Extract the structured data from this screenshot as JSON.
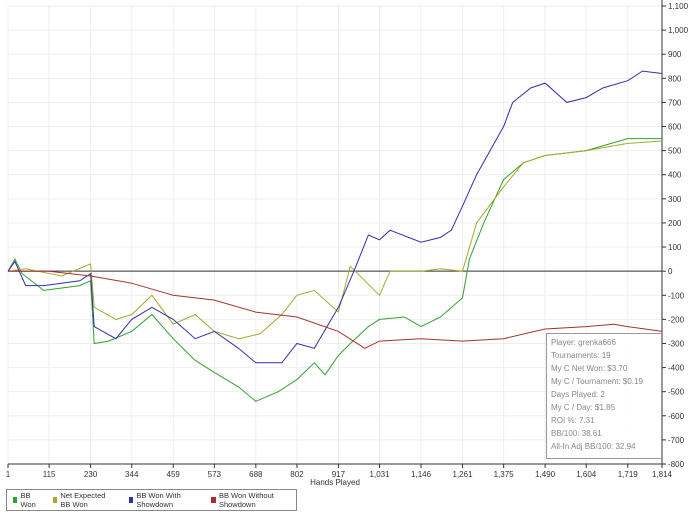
{
  "chart_data": {
    "type": "line",
    "xlabel": "Hands Played",
    "ylabel": "",
    "x_ticks": [
      "1",
      "115",
      "230",
      "344",
      "459",
      "573",
      "688",
      "802",
      "917",
      "1,031",
      "1,146",
      "1,261",
      "1,375",
      "1,490",
      "1,604",
      "1,719",
      "1,814"
    ],
    "x_tick_values": [
      1,
      115,
      230,
      344,
      459,
      573,
      688,
      802,
      917,
      1031,
      1146,
      1261,
      1375,
      1490,
      1604,
      1719,
      1814
    ],
    "y_ticks": [
      "1,100",
      "1,000",
      "900",
      "800",
      "700",
      "600",
      "500",
      "400",
      "300",
      "200",
      "100",
      "0",
      "-100",
      "-200",
      "-300",
      "-400",
      "-500",
      "-600",
      "-700",
      "-800"
    ],
    "xlim": [
      1,
      1814
    ],
    "ylim": [
      -800,
      1100
    ],
    "y_axis_side": "right",
    "grid": true,
    "legend_placement": "bottom-left",
    "series": [
      {
        "name": "BB Won",
        "color": "#33a033",
        "points": [
          [
            1,
            0
          ],
          [
            20,
            50
          ],
          [
            40,
            -10
          ],
          [
            100,
            -80
          ],
          [
            200,
            -60
          ],
          [
            230,
            -40
          ],
          [
            240,
            -300
          ],
          [
            280,
            -290
          ],
          [
            344,
            -250
          ],
          [
            400,
            -180
          ],
          [
            459,
            -280
          ],
          [
            520,
            -370
          ],
          [
            573,
            -420
          ],
          [
            640,
            -480
          ],
          [
            688,
            -540
          ],
          [
            750,
            -500
          ],
          [
            802,
            -450
          ],
          [
            850,
            -380
          ],
          [
            880,
            -430
          ],
          [
            917,
            -350
          ],
          [
            950,
            -300
          ],
          [
            1000,
            -230
          ],
          [
            1031,
            -200
          ],
          [
            1100,
            -190
          ],
          [
            1146,
            -230
          ],
          [
            1200,
            -190
          ],
          [
            1261,
            -110
          ],
          [
            1280,
            50
          ],
          [
            1320,
            200
          ],
          [
            1375,
            380
          ],
          [
            1430,
            450
          ],
          [
            1490,
            480
          ],
          [
            1550,
            490
          ],
          [
            1604,
            500
          ],
          [
            1719,
            550
          ],
          [
            1814,
            550
          ]
        ]
      },
      {
        "name": "Net Expected BB Won",
        "color": "#a8a830",
        "points": [
          [
            1,
            0
          ],
          [
            50,
            10
          ],
          [
            150,
            -20
          ],
          [
            230,
            30
          ],
          [
            240,
            -150
          ],
          [
            300,
            -200
          ],
          [
            344,
            -180
          ],
          [
            400,
            -100
          ],
          [
            459,
            -220
          ],
          [
            520,
            -180
          ],
          [
            573,
            -250
          ],
          [
            640,
            -280
          ],
          [
            700,
            -260
          ],
          [
            760,
            -180
          ],
          [
            802,
            -100
          ],
          [
            850,
            -80
          ],
          [
            917,
            -170
          ],
          [
            950,
            20
          ],
          [
            1031,
            -100
          ],
          [
            1060,
            0
          ],
          [
            1146,
            0
          ],
          [
            1200,
            10
          ],
          [
            1261,
            0
          ],
          [
            1300,
            200
          ],
          [
            1375,
            350
          ],
          [
            1430,
            450
          ],
          [
            1490,
            480
          ],
          [
            1604,
            500
          ],
          [
            1719,
            530
          ],
          [
            1814,
            540
          ]
        ]
      },
      {
        "name": "BB Won With Showdown",
        "color": "#3030a8",
        "points": [
          [
            1,
            0
          ],
          [
            20,
            40
          ],
          [
            50,
            -60
          ],
          [
            100,
            -60
          ],
          [
            200,
            -40
          ],
          [
            230,
            -10
          ],
          [
            240,
            -230
          ],
          [
            300,
            -280
          ],
          [
            344,
            -200
          ],
          [
            400,
            -150
          ],
          [
            459,
            -200
          ],
          [
            520,
            -280
          ],
          [
            573,
            -250
          ],
          [
            640,
            -320
          ],
          [
            688,
            -380
          ],
          [
            760,
            -380
          ],
          [
            802,
            -300
          ],
          [
            850,
            -320
          ],
          [
            917,
            -150
          ],
          [
            960,
            0
          ],
          [
            1000,
            150
          ],
          [
            1031,
            130
          ],
          [
            1060,
            170
          ],
          [
            1146,
            120
          ],
          [
            1200,
            140
          ],
          [
            1230,
            170
          ],
          [
            1261,
            270
          ],
          [
            1300,
            400
          ],
          [
            1375,
            600
          ],
          [
            1400,
            700
          ],
          [
            1450,
            760
          ],
          [
            1490,
            780
          ],
          [
            1550,
            700
          ],
          [
            1604,
            720
          ],
          [
            1650,
            760
          ],
          [
            1719,
            790
          ],
          [
            1760,
            830
          ],
          [
            1814,
            820
          ]
        ]
      },
      {
        "name": "BB Won Without Showdown",
        "color": "#a83030",
        "points": [
          [
            1,
            0
          ],
          [
            115,
            0
          ],
          [
            230,
            -20
          ],
          [
            344,
            -50
          ],
          [
            459,
            -100
          ],
          [
            573,
            -120
          ],
          [
            688,
            -170
          ],
          [
            802,
            -190
          ],
          [
            917,
            -250
          ],
          [
            990,
            -320
          ],
          [
            1031,
            -290
          ],
          [
            1146,
            -280
          ],
          [
            1261,
            -290
          ],
          [
            1375,
            -280
          ],
          [
            1490,
            -240
          ],
          [
            1604,
            -230
          ],
          [
            1680,
            -220
          ],
          [
            1719,
            -230
          ],
          [
            1814,
            -250
          ]
        ]
      }
    ]
  },
  "stats": [
    "Player: grenka666",
    "Tournaments: 19",
    "My C Net Won: $3.70",
    "My C / Tournament: $0.19",
    "Days Played: 2",
    "My C / Day: $1.85",
    "ROI %: 7.31",
    "BB/100: 38.61",
    "All-In Adj BB/100: 32.94"
  ]
}
